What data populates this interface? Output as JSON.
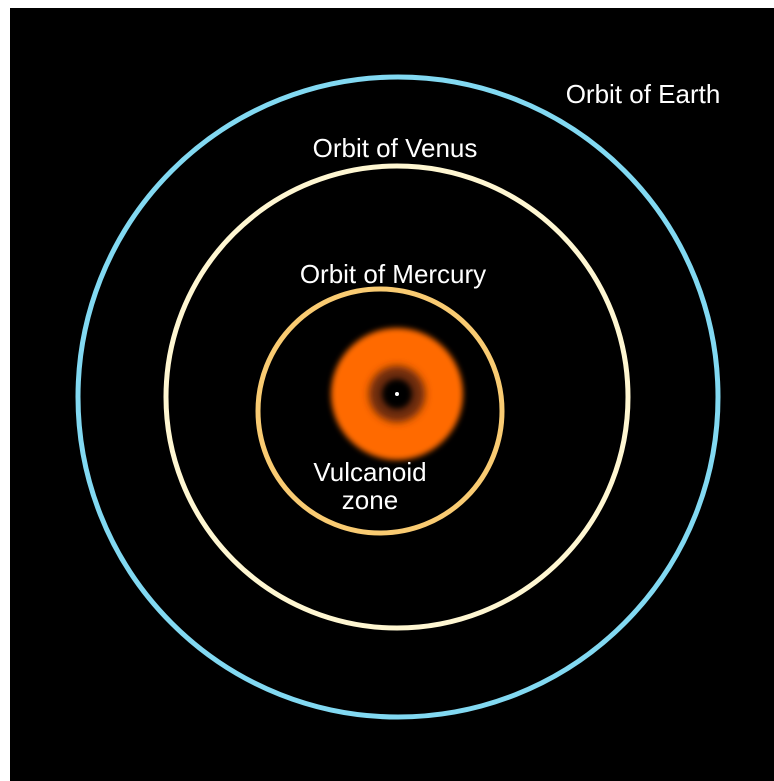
{
  "labels": {
    "earth": "Orbit of Earth",
    "venus": "Orbit of Venus",
    "mercury": "Orbit of Mercury",
    "vulcanoid": [
      "Vulcanoid",
      "zone"
    ]
  }
}
